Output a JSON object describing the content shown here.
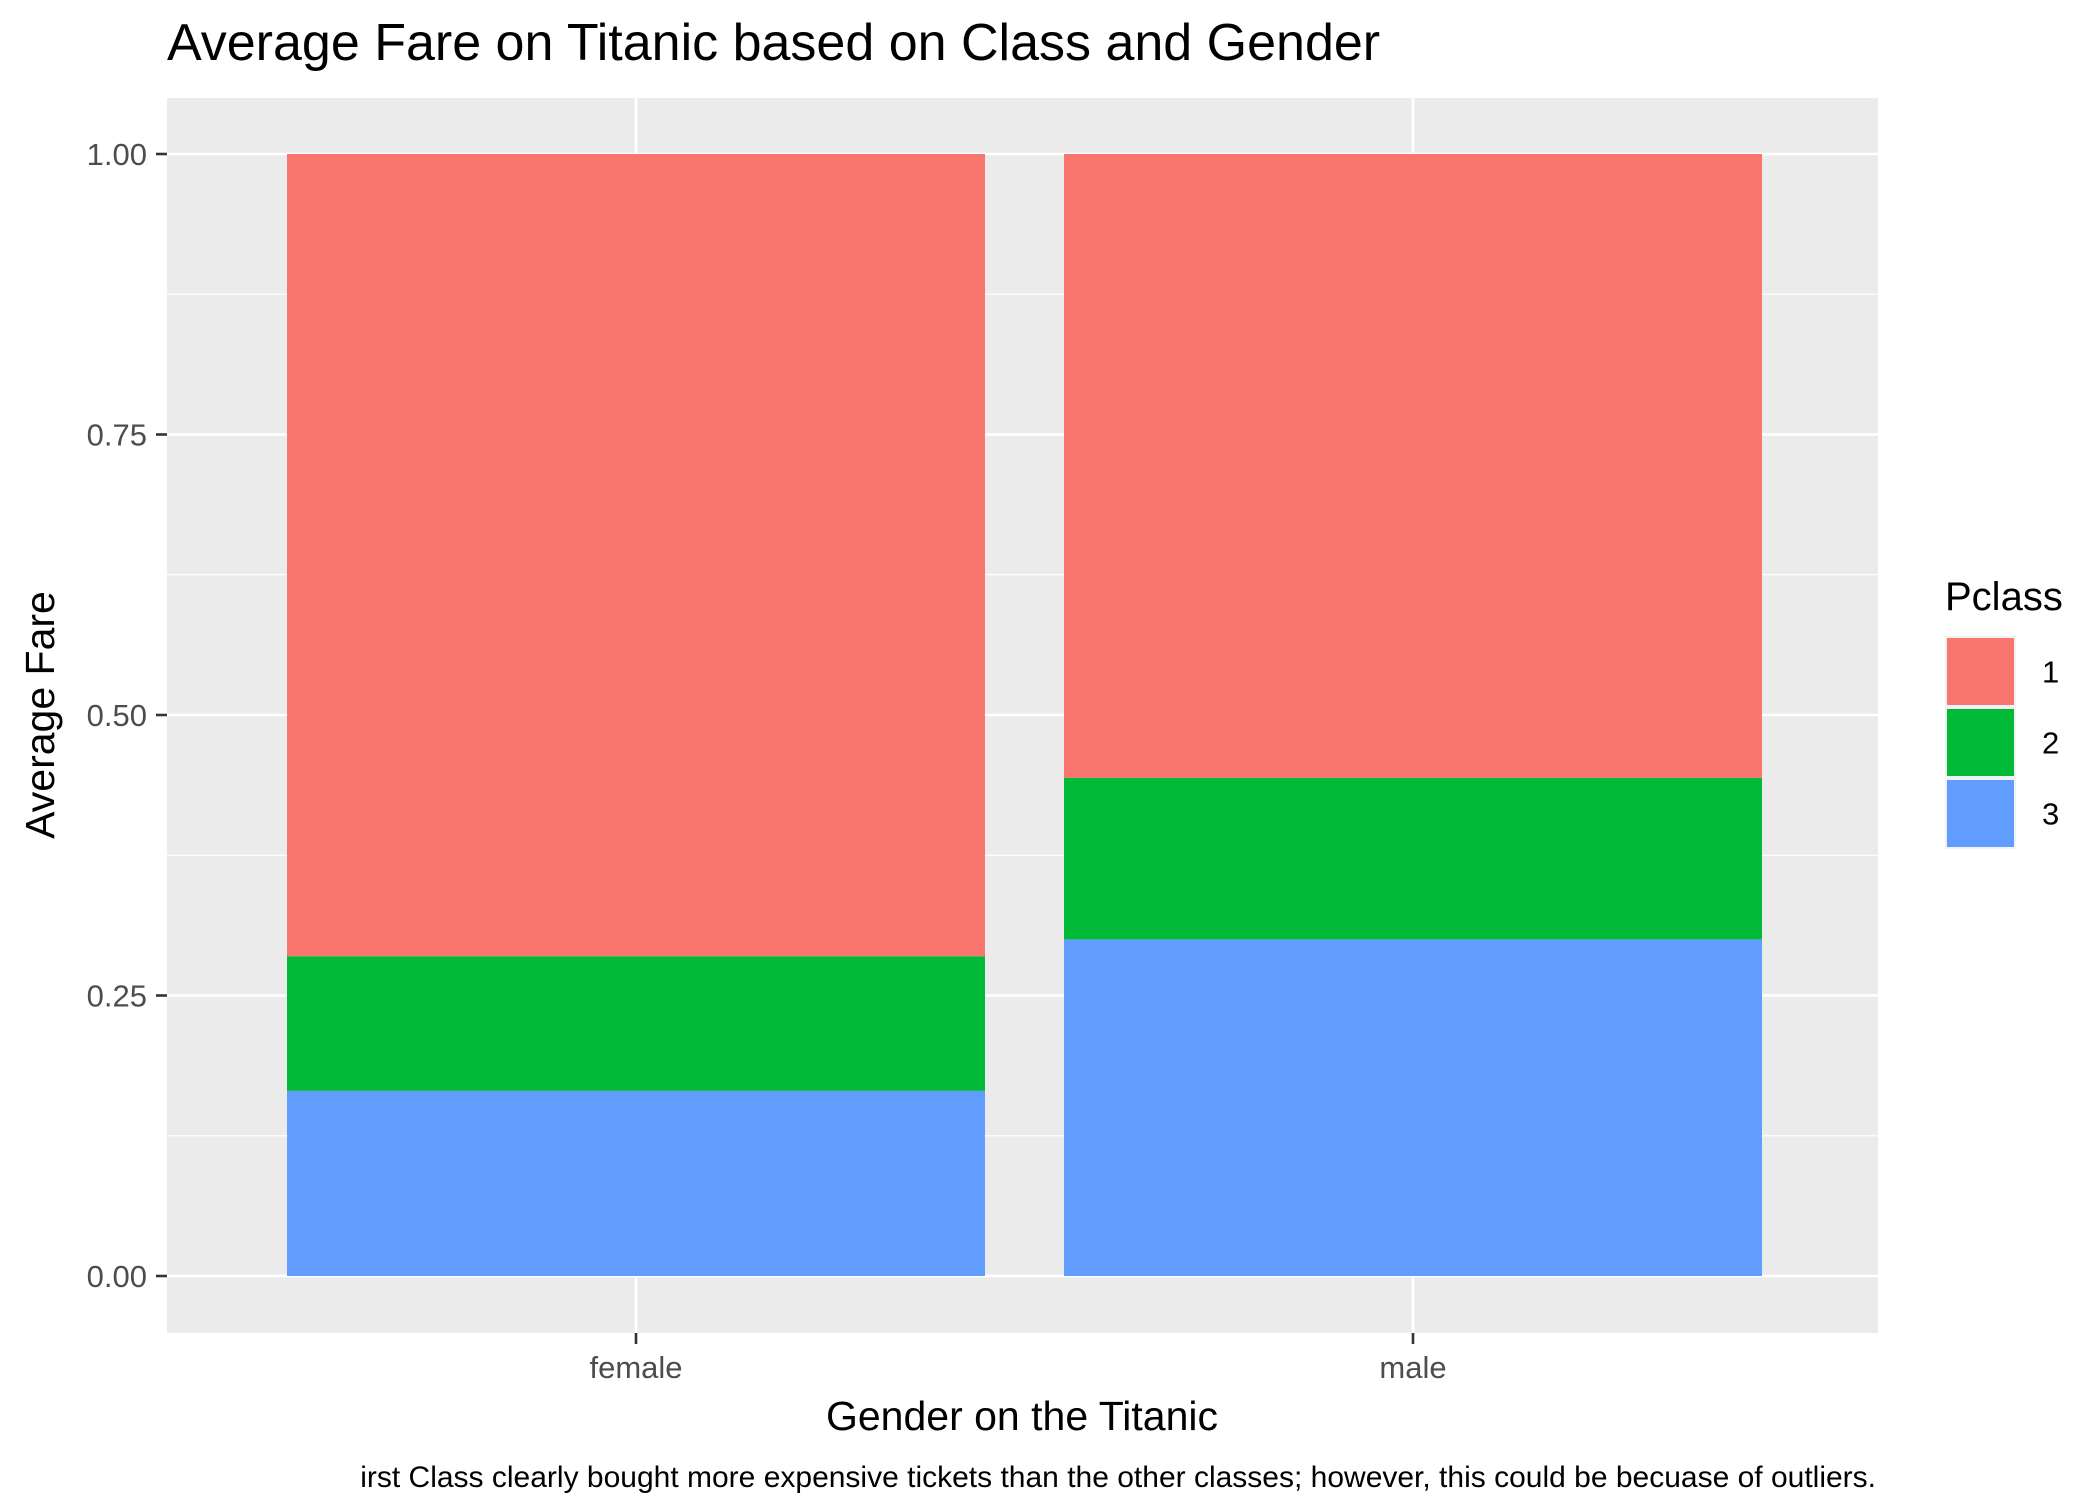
{
  "chart_data": {
    "type": "bar",
    "stacked": true,
    "normalized": true,
    "title": "Average Fare on Titanic based on Class and Gender",
    "xlabel": "Gender on the Titanic",
    "ylabel": "Average Fare",
    "caption": "irst Class clearly bought more expensive tickets than the other classes; however, this could be becuase of outliers.",
    "categories": [
      "female",
      "male"
    ],
    "ylim": [
      0,
      1.05
    ],
    "yticks": [
      0.0,
      0.25,
      0.5,
      0.75,
      1.0
    ],
    "ytick_labels": [
      "0.00",
      "0.25",
      "0.50",
      "0.75",
      "1.00"
    ],
    "legend": {
      "title": "Pclass",
      "placement": "right"
    },
    "series": [
      {
        "name": "1",
        "color": "#F8766D",
        "values": [
          0.715,
          0.556
        ]
      },
      {
        "name": "2",
        "color": "#00BA38",
        "values": [
          0.12,
          0.144
        ]
      },
      {
        "name": "3",
        "color": "#619CFF",
        "values": [
          0.165,
          0.3
        ]
      }
    ],
    "stack_order_bottom_to_top": [
      "3",
      "2",
      "1"
    ],
    "grid": true,
    "panel_background": "#EBEBEB",
    "grid_color": "#FFFFFF"
  }
}
